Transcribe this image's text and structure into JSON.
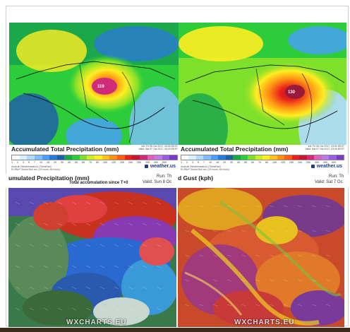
{
  "top_left": {
    "max_label": "119",
    "caption": {
      "title": "Accumulated Total Precipitation (mm)",
      "meta": "Init: Fri 06 Oct 2017, 03:00 EEST\nValid: Sat 07 Oct 2017, 03:00 EEST",
      "ticks": "1 2 3 5 7 10 15 20 30 40 50 60 70 80 100 125 150 200 250 300 400 500",
      "source": "Anaholli (Weatherstation) (ThessRan)\nECMWF Global 9km res. (24 hours, 48 hours)",
      "logo": "weather.us"
    }
  },
  "top_right": {
    "max_label": "130",
    "caption": {
      "title": "Accumulated Total Precipitation (mm)",
      "meta": "Init: Fri 06 Oct 2017, 03:00 EEST\nValid: Sat 07 Oct 2017, 03:00 EEST",
      "ticks": "1 2 3 5 7 10 15 20 30 40 50 60 70 80 100 125 150 200 250 300 400 500",
      "source": "Anaholli (Weatherstation) (ThessRan)\nECMWF Global 9km res. (24 hours, 48 hours)",
      "logo": "weather.us"
    }
  },
  "bottom_left": {
    "title": "umulated Precipitation (mm)",
    "subtitle": "Total accumulation since T+0",
    "run": "Run: Th",
    "valid": "Valid: Sun 8 Oc",
    "watermark": "WXCHARTS.EU"
  },
  "bottom_right": {
    "title": "d Gust (kph)",
    "run": "Run: Th",
    "valid": "Valid: Sat 7 Oc",
    "watermark": "WXCHARTS.EU"
  },
  "colors": {
    "scale": [
      "#ffffff",
      "#d9f0ff",
      "#b0dcff",
      "#7fbfff",
      "#4a9eff",
      "#2a7bd6",
      "#1f5fa8",
      "#1aa84a",
      "#2ccc3a",
      "#7ee02a",
      "#c8ee2a",
      "#ffee22",
      "#ffc21a",
      "#ff9214",
      "#ff5e10",
      "#e8201a",
      "#c41830",
      "#d02a7a",
      "#e060c0",
      "#c07ae8",
      "#9a5ee0",
      "#7a3ac8"
    ]
  }
}
